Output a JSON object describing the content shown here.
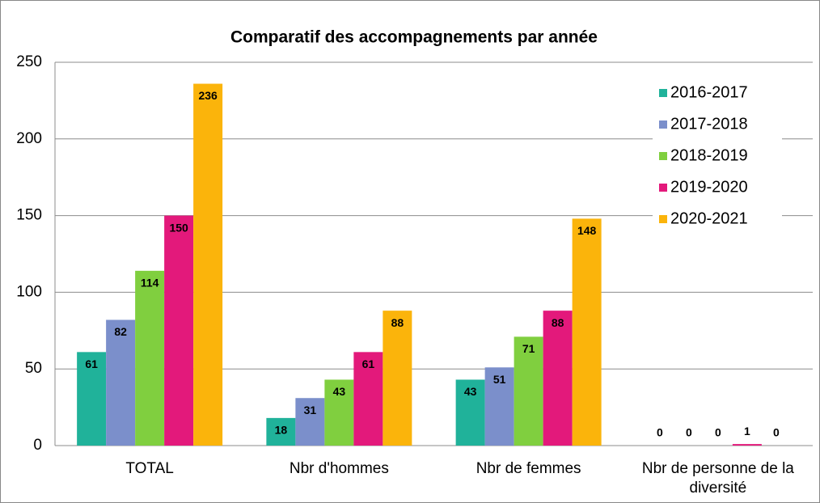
{
  "chart_data": {
    "type": "bar",
    "title": "Comparatif des accompagnements par année",
    "categories": [
      "TOTAL",
      "Nbr d'hommes",
      "Nbr de femmes",
      "Nbr de personne de la diversité"
    ],
    "series": [
      {
        "name": "2016-2017",
        "color": "#20b29a",
        "values": [
          61,
          18,
          43,
          0
        ]
      },
      {
        "name": "2017-2018",
        "color": "#7b8fcb",
        "values": [
          82,
          31,
          51,
          0
        ]
      },
      {
        "name": "2018-2019",
        "color": "#80cf3f",
        "values": [
          114,
          43,
          71,
          0
        ]
      },
      {
        "name": "2019-2020",
        "color": "#e3197b",
        "values": [
          150,
          61,
          88,
          1
        ]
      },
      {
        "name": "2020-2021",
        "color": "#fbb40b",
        "values": [
          236,
          88,
          148,
          0
        ]
      }
    ],
    "ylim": [
      0,
      250
    ],
    "yticks": [
      0,
      50,
      100,
      150,
      200,
      250
    ],
    "grid": true,
    "legend": "right"
  }
}
